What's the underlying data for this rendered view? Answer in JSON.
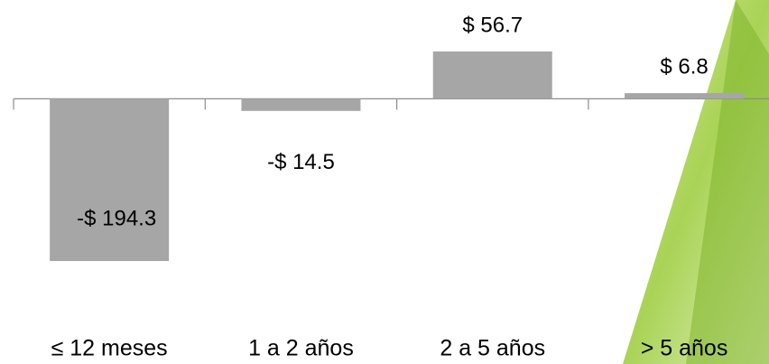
{
  "chart_data": {
    "type": "bar",
    "categories": [
      "≤ 12 meses",
      "1 a 2 años",
      "2 a 5 años",
      "> 5 años"
    ],
    "values": [
      -194.3,
      -14.5,
      56.7,
      6.8
    ],
    "value_labels": [
      "-$ 194.3",
      "-$ 14.5",
      "$ 56.7",
      "$ 6.8"
    ],
    "color": "#a6a6a6"
  }
}
